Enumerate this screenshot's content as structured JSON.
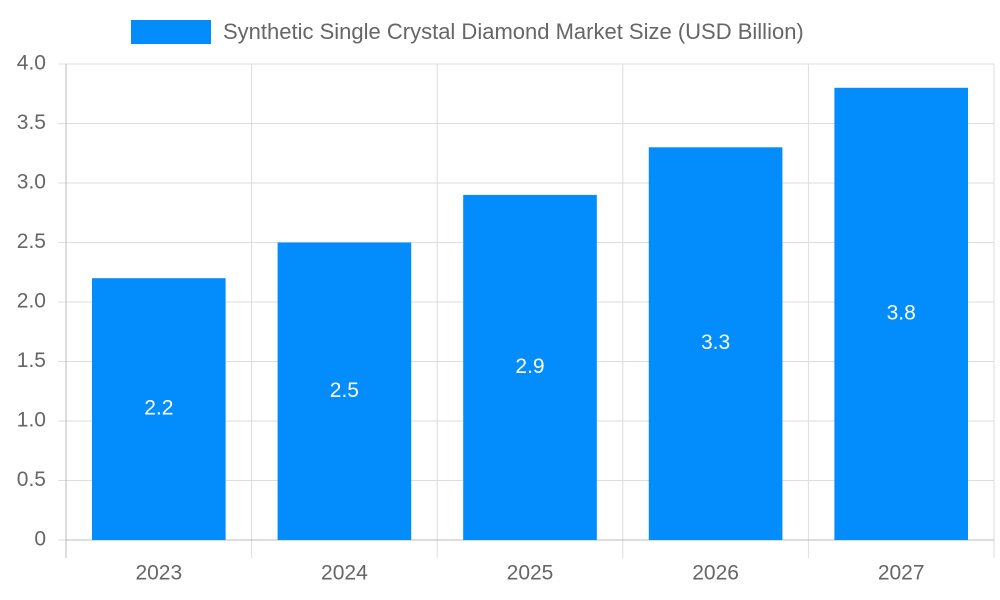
{
  "chart_data": {
    "type": "bar",
    "categories": [
      "2023",
      "2024",
      "2025",
      "2026",
      "2027"
    ],
    "series": [
      {
        "name": "Synthetic Single Crystal Diamond Market Size (USD Billion)",
        "color": "#038cfc",
        "values": [
          2.2,
          2.5,
          2.9,
          3.3,
          3.8
        ]
      }
    ],
    "ylim": [
      0,
      4
    ],
    "yticks": [
      0,
      0.5,
      {
        "value": 1,
        "label": "1.0"
      },
      1.5,
      {
        "value": 2,
        "label": "2.0"
      },
      2.5,
      {
        "value": 3,
        "label": "3.0"
      },
      3.5,
      {
        "value": 4,
        "label": "4.0"
      }
    ],
    "grid": true,
    "legend": "top",
    "data_labels": true
  }
}
